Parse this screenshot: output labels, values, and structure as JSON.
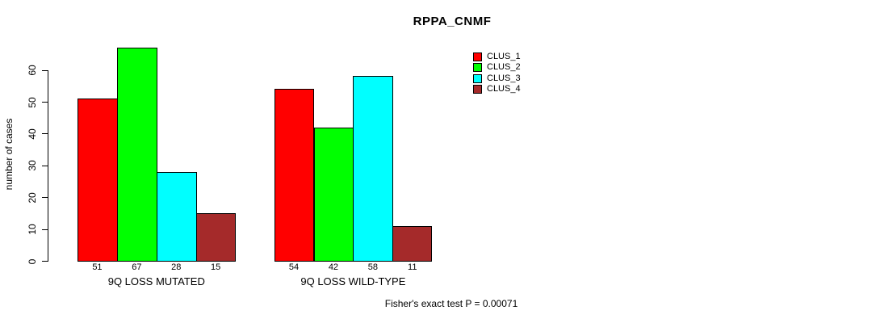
{
  "chart_data": {
    "type": "bar",
    "title": "RPPA_CNMF",
    "ylabel": "number of cases",
    "xlabel": "",
    "ylim": [
      0,
      60
    ],
    "yticks": [
      0,
      10,
      20,
      30,
      40,
      50,
      60
    ],
    "grid": false,
    "legend_position": "top-right",
    "legend_entries": [
      "CLUS_1",
      "CLUS_2",
      "CLUS_3",
      "CLUS_4"
    ],
    "series": [
      {
        "name": "CLUS_1",
        "color": "#ff0000"
      },
      {
        "name": "CLUS_2",
        "color": "#00ff00"
      },
      {
        "name": "CLUS_3",
        "color": "#00ffff"
      },
      {
        "name": "CLUS_4",
        "color": "#a52a2a"
      }
    ],
    "categories": [
      "9Q LOSS MUTATED",
      "9Q LOSS WILD-TYPE"
    ],
    "groups": [
      {
        "label": "9Q LOSS MUTATED",
        "values": [
          51,
          67,
          28,
          15
        ]
      },
      {
        "label": "9Q LOSS WILD-TYPE",
        "values": [
          54,
          42,
          58,
          11
        ]
      }
    ],
    "bar_value_labels_shown": true,
    "footnote": "Fisher's exact test P = 0.00071"
  }
}
